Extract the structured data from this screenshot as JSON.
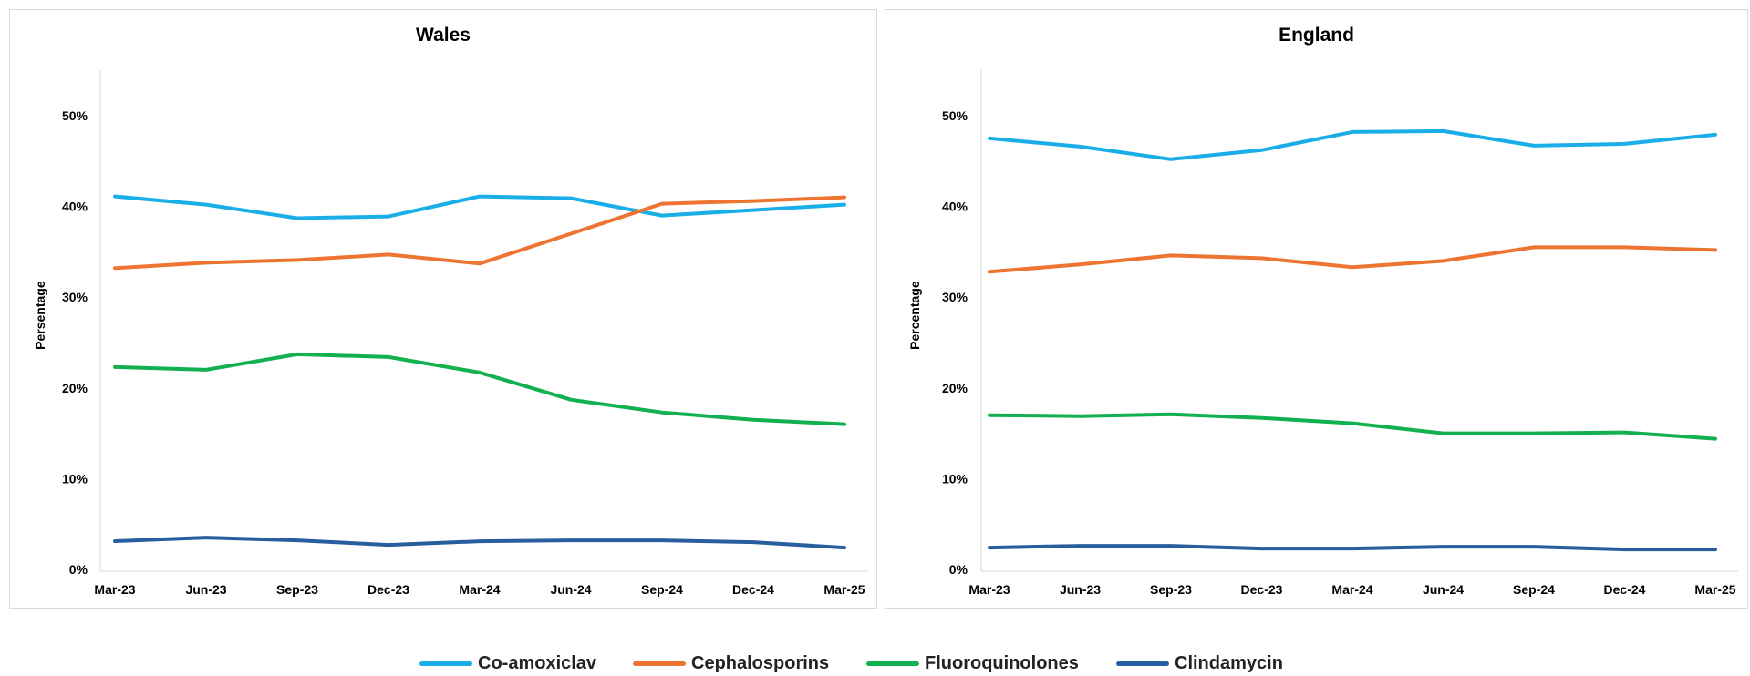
{
  "chart_data": [
    {
      "type": "line",
      "title": "Wales",
      "xlabel": "",
      "ylabel": "Persentage",
      "categories": [
        "Mar-23",
        "Jun-23",
        "Sep-23",
        "Dec-23",
        "Mar-24",
        "Jun-24",
        "Sep-24",
        "Dec-24",
        "Mar-25"
      ],
      "yticks": [
        "0%",
        "10%",
        "20%",
        "30%",
        "40%",
        "50%"
      ],
      "ylim": [
        0,
        0.55
      ],
      "grid": false,
      "series": [
        {
          "name": "Co-amoxiclav",
          "color": "#1AAEE8",
          "values": [
            0.411,
            0.402,
            0.387,
            0.389,
            0.411,
            0.409,
            0.39,
            0.396,
            0.402
          ]
        },
        {
          "name": "Cephalosporins",
          "color": "#ED7431",
          "values": [
            0.332,
            0.338,
            0.341,
            0.347,
            0.337,
            0.37,
            0.403,
            0.406,
            0.41
          ]
        },
        {
          "name": "Fluoroquinolones",
          "color": "#12B04F",
          "values": [
            0.223,
            0.22,
            0.237,
            0.234,
            0.217,
            0.187,
            0.173,
            0.165,
            0.16
          ]
        },
        {
          "name": "Clindamycin",
          "color": "#285E9E",
          "values": [
            0.031,
            0.035,
            0.032,
            0.027,
            0.031,
            0.032,
            0.032,
            0.03,
            0.024
          ]
        }
      ]
    },
    {
      "type": "line",
      "title": "England",
      "xlabel": "",
      "ylabel": "Percentage",
      "categories": [
        "Mar-23",
        "Jun-23",
        "Sep-23",
        "Dec-23",
        "Mar-24",
        "Jun-24",
        "Sep-24",
        "Dec-24",
        "Mar-25"
      ],
      "yticks": [
        "0%",
        "10%",
        "20%",
        "30%",
        "40%",
        "50%"
      ],
      "ylim": [
        0,
        0.55
      ],
      "grid": false,
      "series": [
        {
          "name": "Co-amoxiclav",
          "color": "#1AAEE8",
          "values": [
            0.475,
            0.466,
            0.452,
            0.462,
            0.482,
            0.483,
            0.467,
            0.469,
            0.479
          ]
        },
        {
          "name": "Cephalosporins",
          "color": "#ED7431",
          "values": [
            0.328,
            0.336,
            0.346,
            0.343,
            0.333,
            0.34,
            0.355,
            0.355,
            0.352
          ]
        },
        {
          "name": "Fluoroquinolones",
          "color": "#12B04F",
          "values": [
            0.17,
            0.169,
            0.171,
            0.167,
            0.161,
            0.15,
            0.15,
            0.151,
            0.144
          ]
        },
        {
          "name": "Clindamycin",
          "color": "#285E9E",
          "values": [
            0.024,
            0.026,
            0.026,
            0.023,
            0.023,
            0.025,
            0.025,
            0.022,
            0.022
          ]
        }
      ]
    }
  ],
  "legend": {
    "placement": "bottom",
    "items": [
      {
        "label": "Co-amoxiclav",
        "color": "#1AAEE8"
      },
      {
        "label": "Cephalosporins",
        "color": "#ED7431"
      },
      {
        "label": "Fluoroquinolones",
        "color": "#12B04F"
      },
      {
        "label": "Clindamycin",
        "color": "#285E9E"
      }
    ]
  }
}
